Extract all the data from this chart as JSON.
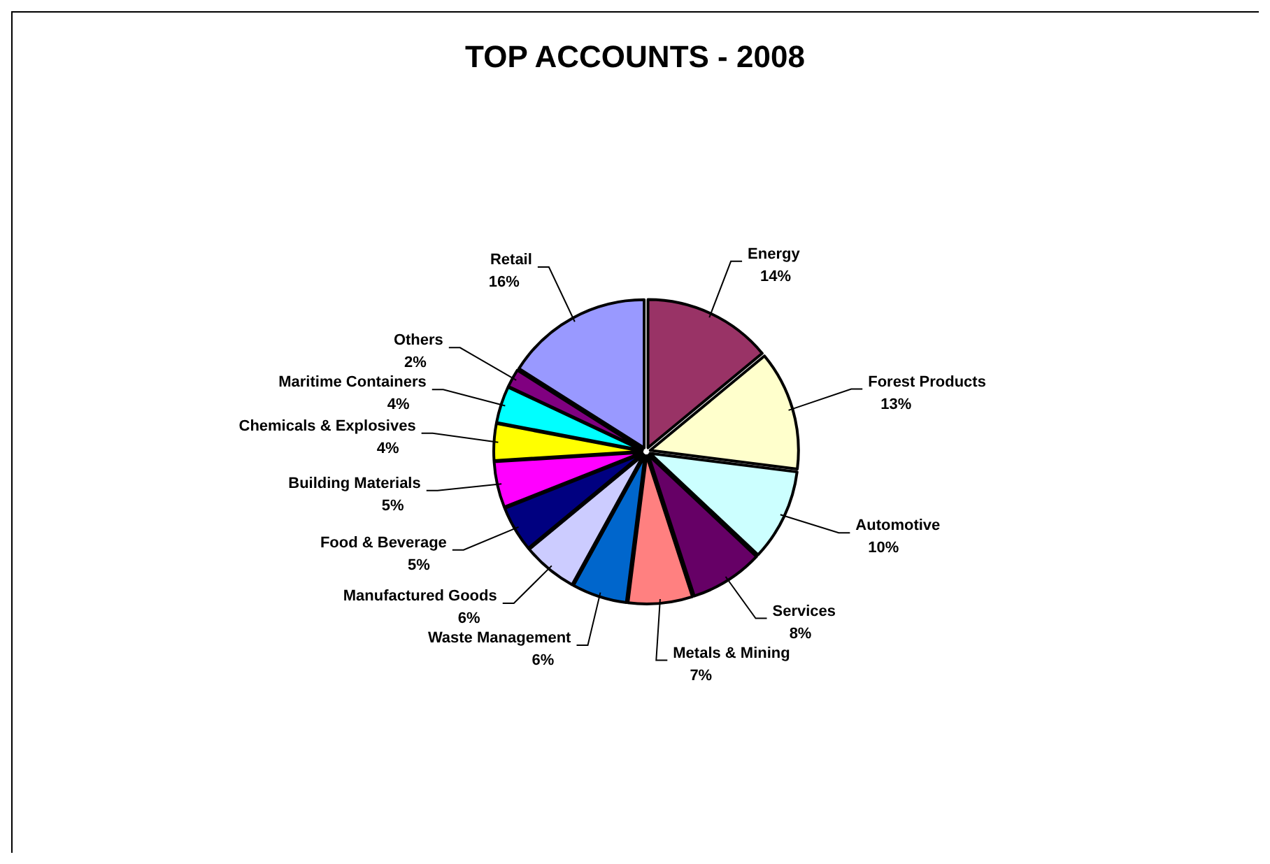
{
  "chart_data": {
    "type": "pie",
    "title": "TOP ACCOUNTS - 2008",
    "categories": [
      "Energy",
      "Forest Products",
      "Automotive",
      "Services",
      "Metals & Mining",
      "Waste Management",
      "Manufactured Goods",
      "Food & Beverage",
      "Building Materials",
      "Chemicals & Explosives",
      "Maritime Containers",
      "Others",
      "Retail"
    ],
    "values": [
      14,
      13,
      10,
      8,
      7,
      6,
      6,
      5,
      5,
      4,
      4,
      2,
      16
    ],
    "colors": [
      "#993366",
      "#ffffcc",
      "#ccffff",
      "#660066",
      "#ff8080",
      "#0066cc",
      "#ccccff",
      "#000080",
      "#ff00ff",
      "#ffff00",
      "#00ffff",
      "#800080",
      "#9999ff"
    ],
    "value_labels": [
      "14%",
      "13%",
      "10%",
      "8%",
      "7%",
      "6%",
      "6%",
      "5%",
      "5%",
      "4%",
      "4%",
      "2%",
      "16%"
    ]
  }
}
